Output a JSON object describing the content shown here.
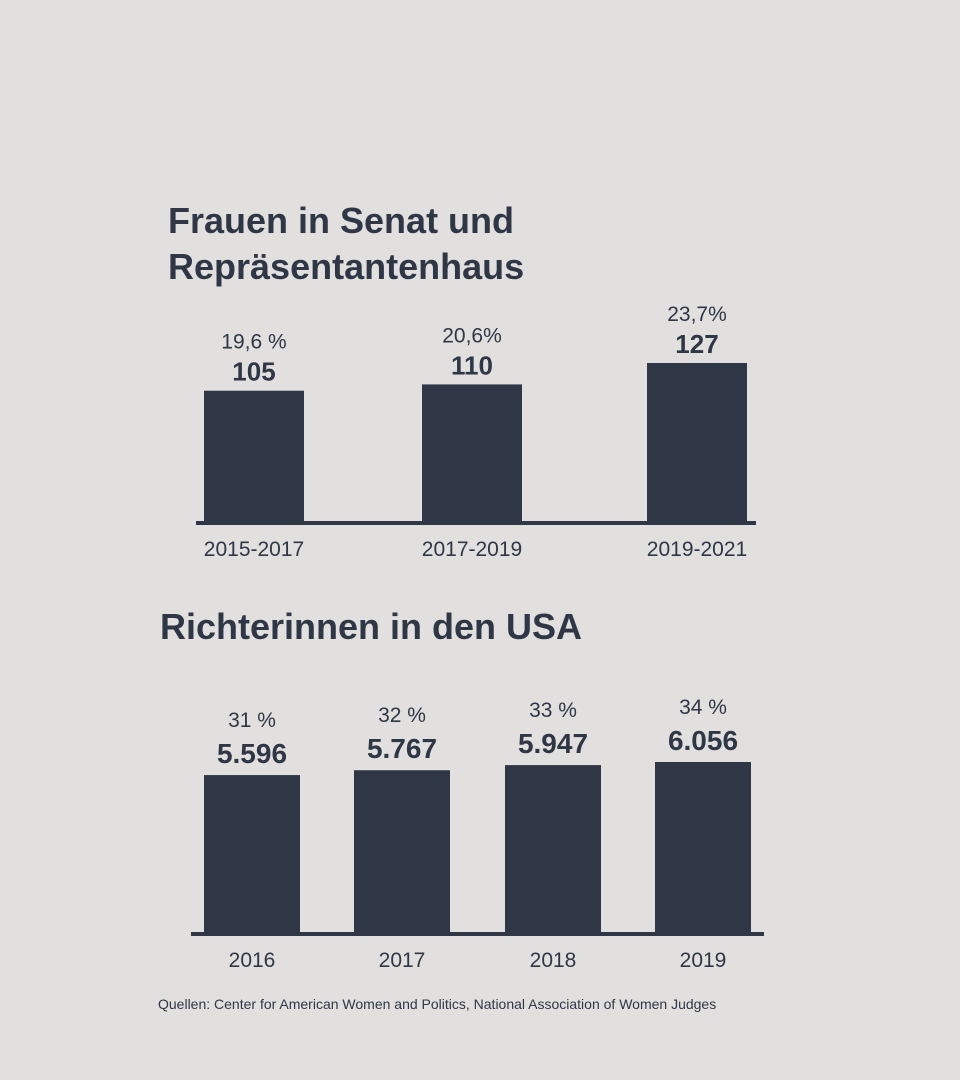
{
  "colors": {
    "background": "#e1e0df",
    "bar": "#2f3746",
    "text": "#2f3746"
  },
  "chart_data": [
    {
      "type": "bar",
      "title": "Frauen in Senat und Repräsentantenhaus",
      "title_lines": [
        "Frauen in Senat und",
        "Repräsentantenhaus"
      ],
      "categories": [
        "2015-2017",
        "2017-2019",
        "2019-2021"
      ],
      "values": [
        105,
        110,
        127
      ],
      "value_labels": [
        "105",
        "110",
        "127"
      ],
      "percent_labels": [
        "19,6 %",
        "20,6%",
        "23,7%"
      ],
      "xlabel": "",
      "ylabel": "",
      "ylim": [
        0,
        127
      ],
      "grid": false
    },
    {
      "type": "bar",
      "title": "Richterinnen in den USA",
      "categories": [
        "2016",
        "2017",
        "2018",
        "2019"
      ],
      "values": [
        5596,
        5767,
        5947,
        6056
      ],
      "value_labels": [
        "5.596",
        "5.767",
        "5.947",
        "6.056"
      ],
      "percent_labels": [
        "31 %",
        "32 %",
        "33 %",
        "34 %"
      ],
      "xlabel": "",
      "ylabel": "",
      "ylim": [
        0,
        6056
      ],
      "grid": false
    }
  ],
  "source": "Quellen: Center for American Women and Politics, National Association of Women Judges"
}
